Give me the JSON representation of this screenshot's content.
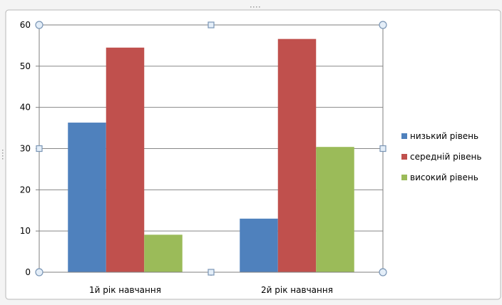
{
  "chart_data": {
    "type": "bar",
    "categories": [
      "1й рік навчання",
      "2й рік навчання"
    ],
    "series": [
      {
        "name": "низький рівень",
        "values": [
          36.3,
          13
        ],
        "color": "#4f81bd"
      },
      {
        "name": "середній рівень",
        "values": [
          54.5,
          56.6
        ],
        "color": "#c0504d"
      },
      {
        "name": "високий рівень",
        "values": [
          9.1,
          30.4
        ],
        "color": "#9bbb59"
      }
    ],
    "ylim": [
      0,
      60
    ],
    "yticks": [
      0,
      10,
      20,
      30,
      40,
      50,
      60
    ],
    "grid": true,
    "legend_position": "right"
  }
}
